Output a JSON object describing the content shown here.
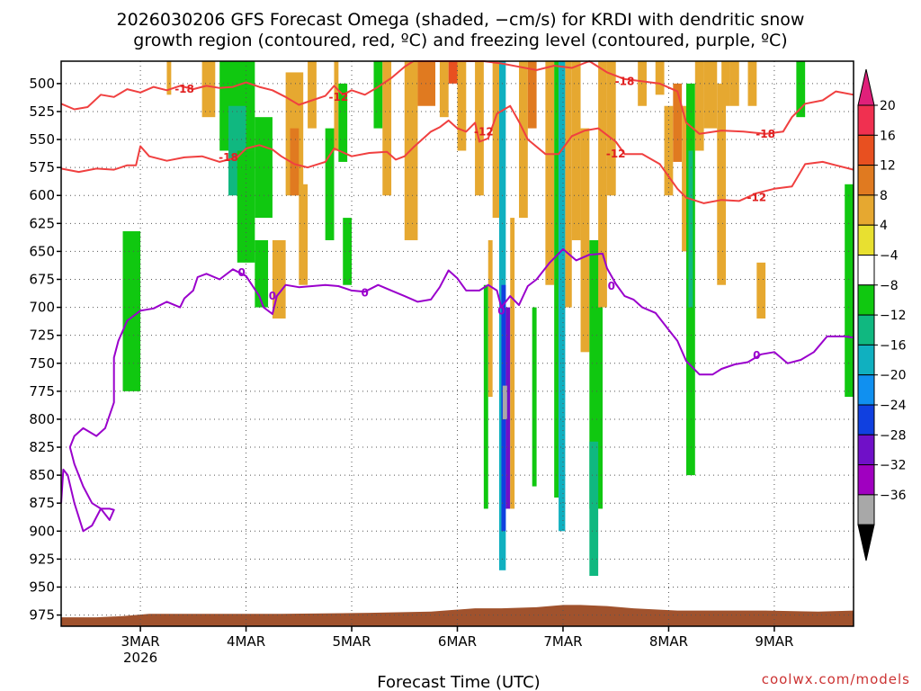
{
  "title_line1": "2026030206 GFS Forecast Omega (shaded, −cm/s) for KRDI with dendritic snow",
  "title_line2": "growth region (contoured, red, ºC) and freezing level (contoured, purple, ºC)",
  "credit": "coolwx.com/models",
  "chart_data": {
    "type": "heatmap",
    "xlabel": "Forecast Time (UTC)",
    "x_ticks": [
      {
        "label": "3MAR",
        "sub": "2026",
        "hour": 18
      },
      {
        "label": "4MAR",
        "sub": "",
        "hour": 42
      },
      {
        "label": "5MAR",
        "sub": "",
        "hour": 66
      },
      {
        "label": "6MAR",
        "sub": "",
        "hour": 90
      },
      {
        "label": "7MAR",
        "sub": "",
        "hour": 114
      },
      {
        "label": "8MAR",
        "sub": "",
        "hour": 138
      },
      {
        "label": "9MAR",
        "sub": "",
        "hour": 162
      }
    ],
    "x_range_hours": [
      0,
      180
    ],
    "y_ticks": [
      "500",
      "525",
      "550",
      "575",
      "600",
      "625",
      "650",
      "675",
      "700",
      "725",
      "750",
      "775",
      "800",
      "825",
      "850",
      "875",
      "900",
      "925",
      "950",
      "975"
    ],
    "y_range_hpa": [
      480,
      985
    ],
    "grid": true,
    "colorbar": {
      "labels": [
        "20",
        "16",
        "12",
        "8",
        "4",
        "−4",
        "−8",
        "−12",
        "−16",
        "−20",
        "−24",
        "−28",
        "−32",
        "−36"
      ],
      "colors": [
        "#f03050",
        "#e85020",
        "#e07a20",
        "#e6a830",
        "#e8e030",
        "#ffffff",
        "#10c810",
        "#10b880",
        "#10b0c0",
        "#1090f0",
        "#1040e0",
        "#7010c8",
        "#a000c0",
        "#a8a8a8"
      ],
      "top_arrow": "#e0207a",
      "bottom_arrow": "#000000"
    },
    "contour_labels_red": [
      "-18",
      "-18",
      "-12",
      "-12",
      "-18",
      "-12",
      "-18",
      "-12"
    ],
    "contour_labels_purple": [
      "0",
      "0",
      "0",
      "0",
      "0",
      "0"
    ],
    "dgz_upper_minus18_hpa": [
      [
        0,
        518
      ],
      [
        3,
        523
      ],
      [
        6,
        521
      ],
      [
        9,
        510
      ],
      [
        12,
        512
      ],
      [
        15,
        505
      ],
      [
        18,
        508
      ],
      [
        21,
        503
      ],
      [
        24,
        506
      ],
      [
        27,
        502
      ],
      [
        30,
        505
      ],
      [
        33,
        502
      ],
      [
        36,
        504
      ],
      [
        39,
        503
      ],
      [
        42,
        499
      ],
      [
        45,
        503
      ],
      [
        48,
        506
      ],
      [
        51,
        512
      ],
      [
        54,
        519
      ],
      [
        57,
        515
      ],
      [
        60,
        511
      ],
      [
        62,
        502
      ],
      [
        64,
        510
      ],
      [
        66,
        506
      ],
      [
        69,
        510
      ],
      [
        72,
        503
      ],
      [
        75,
        495
      ],
      [
        78,
        485
      ],
      [
        80,
        480
      ],
      [
        96,
        480
      ],
      [
        100,
        482
      ],
      [
        104,
        485
      ],
      [
        108,
        488
      ],
      [
        112,
        484
      ],
      [
        116,
        486
      ],
      [
        120,
        480
      ],
      [
        124,
        490
      ],
      [
        128,
        496
      ],
      [
        132,
        498
      ],
      [
        136,
        500
      ],
      [
        140,
        507
      ],
      [
        142,
        535
      ],
      [
        145,
        545
      ],
      [
        150,
        542
      ],
      [
        155,
        543
      ],
      [
        160,
        545
      ],
      [
        164,
        543
      ],
      [
        166,
        530
      ],
      [
        169,
        518
      ],
      [
        173,
        515
      ],
      [
        176,
        507
      ],
      [
        180,
        510
      ]
    ],
    "dgz_lower_minus12_hpa": [
      [
        0,
        576
      ],
      [
        4,
        579
      ],
      [
        8,
        576
      ],
      [
        12,
        577
      ],
      [
        15,
        573
      ],
      [
        17,
        573
      ],
      [
        18,
        556
      ],
      [
        20,
        565
      ],
      [
        24,
        569
      ],
      [
        28,
        566
      ],
      [
        32,
        565
      ],
      [
        36,
        570
      ],
      [
        40,
        566
      ],
      [
        42,
        558
      ],
      [
        45,
        555
      ],
      [
        48,
        559
      ],
      [
        50,
        565
      ],
      [
        53,
        572
      ],
      [
        56,
        575
      ],
      [
        60,
        570
      ],
      [
        62,
        558
      ],
      [
        66,
        565
      ],
      [
        70,
        562
      ],
      [
        74,
        561
      ],
      [
        76,
        568
      ],
      [
        78,
        565
      ],
      [
        80,
        557
      ],
      [
        84,
        543
      ],
      [
        86,
        539
      ],
      [
        88,
        533
      ],
      [
        90,
        540
      ],
      [
        92,
        543
      ],
      [
        94,
        535
      ],
      [
        95,
        552
      ],
      [
        97,
        549
      ],
      [
        99,
        527
      ],
      [
        102,
        520
      ],
      [
        104,
        534
      ],
      [
        106,
        550
      ],
      [
        110,
        563
      ],
      [
        113,
        563
      ],
      [
        116,
        547
      ],
      [
        119,
        542
      ],
      [
        122,
        540
      ],
      [
        124,
        546
      ],
      [
        126,
        552
      ],
      [
        128,
        563
      ],
      [
        132,
        563
      ],
      [
        136,
        572
      ],
      [
        138,
        583
      ],
      [
        140,
        594
      ],
      [
        142,
        602
      ],
      [
        146,
        607
      ],
      [
        150,
        604
      ],
      [
        154,
        605
      ],
      [
        158,
        598
      ],
      [
        162,
        594
      ],
      [
        166,
        592
      ],
      [
        169,
        572
      ],
      [
        173,
        570
      ],
      [
        176,
        573
      ],
      [
        180,
        577
      ]
    ],
    "freezing_level_0c_hpa": [
      [
        0,
        875
      ],
      [
        0.5,
        845
      ],
      [
        1.5,
        850
      ],
      [
        3,
        875
      ],
      [
        5,
        900
      ],
      [
        7,
        895
      ],
      [
        9,
        880
      ],
      [
        11,
        890
      ],
      [
        12,
        881
      ],
      [
        11,
        880
      ],
      [
        9,
        880
      ],
      [
        7,
        875
      ],
      [
        5,
        860
      ],
      [
        3,
        840
      ],
      [
        2,
        825
      ],
      [
        3,
        815
      ],
      [
        5,
        808
      ],
      [
        8,
        815
      ],
      [
        10,
        808
      ],
      [
        12,
        785
      ],
      [
        12,
        745
      ],
      [
        13,
        730
      ],
      [
        15,
        712
      ],
      [
        18,
        703
      ],
      [
        21,
        701
      ],
      [
        24,
        695
      ],
      [
        27,
        700
      ],
      [
        28,
        692
      ],
      [
        30,
        685
      ],
      [
        31,
        673
      ],
      [
        33,
        670
      ],
      [
        36,
        675
      ],
      [
        39,
        666
      ],
      [
        42,
        672
      ],
      [
        45,
        690
      ],
      [
        46,
        700
      ],
      [
        48,
        706
      ],
      [
        49,
        690
      ],
      [
        51,
        680
      ],
      [
        54,
        682
      ],
      [
        57,
        681
      ],
      [
        60,
        680
      ],
      [
        63,
        681
      ],
      [
        66,
        685
      ],
      [
        69,
        686
      ],
      [
        72,
        680
      ],
      [
        75,
        685
      ],
      [
        78,
        690
      ],
      [
        81,
        695
      ],
      [
        84,
        693
      ],
      [
        86,
        682
      ],
      [
        88,
        667
      ],
      [
        90,
        674
      ],
      [
        92,
        685
      ],
      [
        95,
        685
      ],
      [
        97,
        680
      ],
      [
        99,
        685
      ],
      [
        100,
        700
      ],
      [
        102,
        690
      ],
      [
        104,
        698
      ],
      [
        106,
        681
      ],
      [
        108,
        675
      ],
      [
        111,
        660
      ],
      [
        114,
        648
      ],
      [
        117,
        658
      ],
      [
        120,
        653
      ],
      [
        123,
        652
      ],
      [
        124,
        665
      ],
      [
        126,
        679
      ],
      [
        128,
        690
      ],
      [
        130,
        693
      ],
      [
        132,
        700
      ],
      [
        135,
        705
      ],
      [
        138,
        720
      ],
      [
        140,
        730
      ],
      [
        142,
        748
      ],
      [
        145,
        760
      ],
      [
        148,
        760
      ],
      [
        150,
        755
      ],
      [
        153,
        751
      ],
      [
        156,
        749
      ],
      [
        159,
        742
      ],
      [
        162,
        740
      ],
      [
        165,
        750
      ],
      [
        168,
        747
      ],
      [
        171,
        740
      ],
      [
        174,
        726
      ],
      [
        178,
        726
      ],
      [
        180,
        727
      ]
    ],
    "surface_hpa": [
      [
        0,
        977
      ],
      [
        8,
        977
      ],
      [
        14,
        976
      ],
      [
        20,
        974
      ],
      [
        30,
        974
      ],
      [
        50,
        974
      ],
      [
        70,
        973
      ],
      [
        84,
        972
      ],
      [
        94,
        969
      ],
      [
        100,
        969
      ],
      [
        108,
        968
      ],
      [
        114,
        966
      ],
      [
        118,
        966
      ],
      [
        124,
        967
      ],
      [
        130,
        969
      ],
      [
        140,
        971
      ],
      [
        160,
        971
      ],
      [
        172,
        972
      ],
      [
        180,
        971
      ]
    ],
    "shading_cells": [
      {
        "h0": 14,
        "h1": 18,
        "p0": 632,
        "p1": 775,
        "v": -7
      },
      {
        "h0": 24,
        "h1": 25,
        "p0": 480,
        "p1": 510,
        "v": 5
      },
      {
        "h0": 32,
        "h1": 35,
        "p0": 480,
        "p1": 530,
        "v": 5
      },
      {
        "h0": 36,
        "h1": 44,
        "p0": 480,
        "p1": 560,
        "v": -6
      },
      {
        "h0": 38,
        "h1": 42,
        "p0": 520,
        "p1": 600,
        "v": -9
      },
      {
        "h0": 40,
        "h1": 44,
        "p0": 560,
        "p1": 660,
        "v": -7
      },
      {
        "h0": 44,
        "h1": 48,
        "p0": 530,
        "p1": 620,
        "v": -6
      },
      {
        "h0": 44,
        "h1": 47,
        "p0": 640,
        "p1": 700,
        "v": -6
      },
      {
        "h0": 48,
        "h1": 51,
        "p0": 640,
        "p1": 710,
        "v": 6
      },
      {
        "h0": 51,
        "h1": 55,
        "p0": 490,
        "p1": 600,
        "v": 5
      },
      {
        "h0": 52,
        "h1": 54,
        "p0": 540,
        "p1": 600,
        "v": 9
      },
      {
        "h0": 54,
        "h1": 56,
        "p0": 590,
        "p1": 680,
        "v": 5
      },
      {
        "h0": 56,
        "h1": 58,
        "p0": 480,
        "p1": 540,
        "v": 6
      },
      {
        "h0": 60,
        "h1": 62,
        "p0": 540,
        "p1": 640,
        "v": -6
      },
      {
        "h0": 62,
        "h1": 63,
        "p0": 480,
        "p1": 560,
        "v": 5
      },
      {
        "h0": 63,
        "h1": 65,
        "p0": 500,
        "p1": 570,
        "v": -6
      },
      {
        "h0": 64,
        "h1": 66,
        "p0": 620,
        "p1": 680,
        "v": -6
      },
      {
        "h0": 71,
        "h1": 73,
        "p0": 480,
        "p1": 540,
        "v": -7
      },
      {
        "h0": 73,
        "h1": 75,
        "p0": 480,
        "p1": 600,
        "v": 5
      },
      {
        "h0": 78,
        "h1": 81,
        "p0": 480,
        "p1": 640,
        "v": 6
      },
      {
        "h0": 81,
        "h1": 85,
        "p0": 480,
        "p1": 520,
        "v": 10
      },
      {
        "h0": 86,
        "h1": 88,
        "p0": 480,
        "p1": 530,
        "v": 6
      },
      {
        "h0": 88,
        "h1": 90,
        "p0": 480,
        "p1": 500,
        "v": 12
      },
      {
        "h0": 90,
        "h1": 92,
        "p0": 480,
        "p1": 560,
        "v": 5
      },
      {
        "h0": 94,
        "h1": 96,
        "p0": 480,
        "p1": 600,
        "v": 5
      },
      {
        "h0": 96,
        "h1": 97,
        "p0": 680,
        "p1": 880,
        "v": -6
      },
      {
        "h0": 97,
        "h1": 98,
        "p0": 640,
        "p1": 780,
        "v": 5
      },
      {
        "h0": 98,
        "h1": 99.5,
        "p0": 480,
        "p1": 620,
        "v": 7
      },
      {
        "h0": 99.5,
        "h1": 101,
        "p0": 480,
        "p1": 935,
        "v": -14
      },
      {
        "h0": 100,
        "h1": 101,
        "p0": 680,
        "p1": 900,
        "v": -21
      },
      {
        "h0": 101,
        "h1": 102,
        "p0": 700,
        "p1": 880,
        "v": -27
      },
      {
        "h0": 100.3,
        "h1": 101.3,
        "p0": 770,
        "p1": 800,
        "v": -34
      },
      {
        "h0": 102,
        "h1": 103,
        "p0": 620,
        "p1": 880,
        "v": 6
      },
      {
        "h0": 104,
        "h1": 106,
        "p0": 480,
        "p1": 620,
        "v": 5
      },
      {
        "h0": 106,
        "h1": 108,
        "p0": 480,
        "p1": 540,
        "v": 9
      },
      {
        "h0": 107,
        "h1": 108,
        "p0": 700,
        "p1": 860,
        "v": -6
      },
      {
        "h0": 110,
        "h1": 112,
        "p0": 480,
        "p1": 680,
        "v": 5
      },
      {
        "h0": 112,
        "h1": 113,
        "p0": 480,
        "p1": 870,
        "v": -7
      },
      {
        "h0": 113,
        "h1": 114.5,
        "p0": 480,
        "p1": 900,
        "v": -14
      },
      {
        "h0": 114.5,
        "h1": 116,
        "p0": 480,
        "p1": 700,
        "v": 5
      },
      {
        "h0": 116,
        "h1": 118,
        "p0": 480,
        "p1": 640,
        "v": 6
      },
      {
        "h0": 118,
        "h1": 120,
        "p0": 540,
        "p1": 740,
        "v": 5
      },
      {
        "h0": 120,
        "h1": 123,
        "p0": 640,
        "p1": 880,
        "v": -6
      },
      {
        "h0": 120,
        "h1": 122,
        "p0": 820,
        "p1": 940,
        "v": -10
      },
      {
        "h0": 122,
        "h1": 124,
        "p0": 480,
        "p1": 700,
        "v": 5
      },
      {
        "h0": 124,
        "h1": 126,
        "p0": 480,
        "p1": 600,
        "v": 7
      },
      {
        "h0": 131,
        "h1": 133,
        "p0": 480,
        "p1": 520,
        "v": 5
      },
      {
        "h0": 135,
        "h1": 137,
        "p0": 480,
        "p1": 510,
        "v": 5
      },
      {
        "h0": 137,
        "h1": 139,
        "p0": 520,
        "p1": 600,
        "v": 5
      },
      {
        "h0": 139,
        "h1": 141,
        "p0": 500,
        "p1": 570,
        "v": 9
      },
      {
        "h0": 141,
        "h1": 142,
        "p0": 520,
        "p1": 650,
        "v": 5
      },
      {
        "h0": 142,
        "h1": 144,
        "p0": 500,
        "p1": 850,
        "v": -6
      },
      {
        "h0": 142.5,
        "h1": 143.5,
        "p0": 560,
        "p1": 700,
        "v": -9
      },
      {
        "h0": 144,
        "h1": 146,
        "p0": 480,
        "p1": 560,
        "v": 6
      },
      {
        "h0": 146,
        "h1": 149,
        "p0": 480,
        "p1": 540,
        "v": 5
      },
      {
        "h0": 149,
        "h1": 151,
        "p0": 500,
        "p1": 680,
        "v": 6
      },
      {
        "h0": 150,
        "h1": 152,
        "p0": 480,
        "p1": 520,
        "v": 5
      },
      {
        "h0": 152,
        "h1": 154,
        "p0": 480,
        "p1": 520,
        "v": 5
      },
      {
        "h0": 156,
        "h1": 158,
        "p0": 480,
        "p1": 520,
        "v": 5
      },
      {
        "h0": 158,
        "h1": 160,
        "p0": 660,
        "p1": 710,
        "v": 5
      },
      {
        "h0": 167,
        "h1": 169,
        "p0": 480,
        "p1": 530,
        "v": -6
      },
      {
        "h0": 178,
        "h1": 180,
        "p0": 590,
        "p1": 780,
        "v": -6
      }
    ]
  }
}
